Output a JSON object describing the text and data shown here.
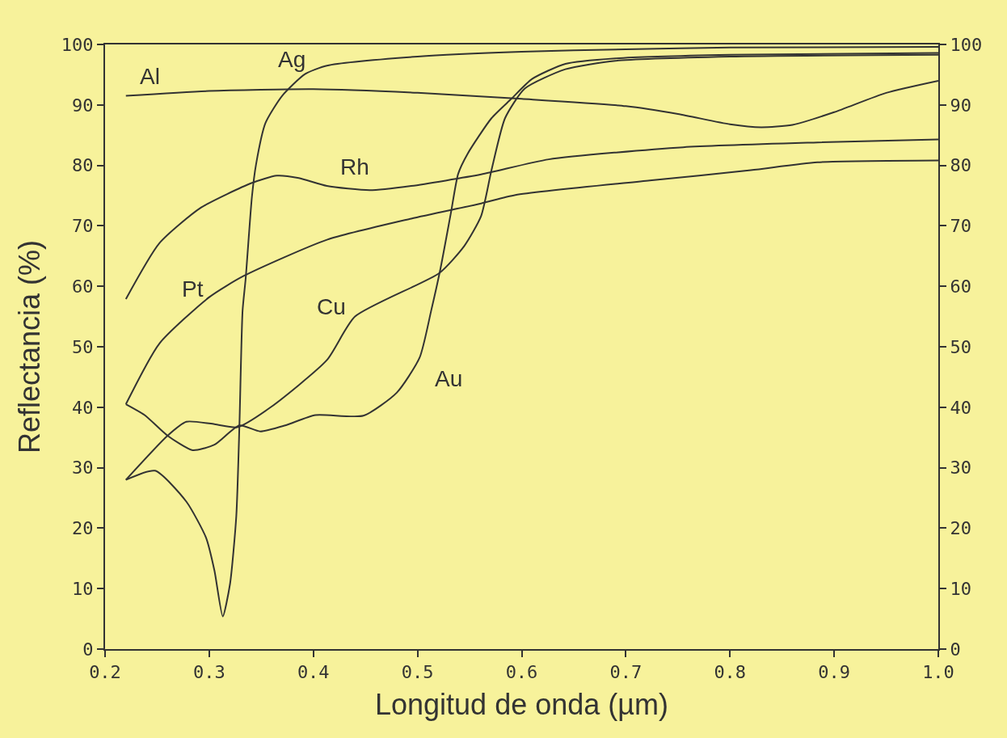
{
  "chart_data": {
    "type": "line",
    "xlabel": "Longitud de onda (µm)",
    "ylabel": "Reflectancia (%)",
    "xlim": [
      0.2,
      1.0
    ],
    "xticks": [
      0.2,
      0.3,
      0.4,
      0.5,
      0.6,
      0.7,
      0.8,
      0.9,
      {
        "value": 1.0,
        "label": "1.0"
      }
    ],
    "ylim": [
      0,
      100
    ],
    "yticks": [
      0,
      10,
      20,
      30,
      40,
      50,
      60,
      70,
      80,
      90,
      100
    ],
    "y2lim": [
      0,
      100
    ],
    "y2ticks": [
      0,
      10,
      20,
      30,
      40,
      50,
      60,
      70,
      80,
      90,
      100
    ],
    "grid": false,
    "marker": "none",
    "line_style": "solid",
    "series": [
      {
        "name": "Al",
        "color": "#333333",
        "x": [
          0.22,
          0.3,
          0.4,
          0.5,
          0.6,
          0.7,
          0.75,
          0.8,
          0.83,
          0.86,
          0.9,
          0.95,
          1.0
        ],
        "values": [
          91.5,
          92.3,
          92.6,
          92,
          91,
          89.8,
          88.5,
          86.8,
          86.3,
          86.7,
          88.8,
          92,
          94
        ]
      },
      {
        "name": "Ag",
        "color": "#333333",
        "x": [
          0.22,
          0.248,
          0.278,
          0.297,
          0.305,
          0.313,
          0.32,
          0.326,
          0.329,
          0.332,
          0.335,
          0.341,
          0.345,
          0.354,
          0.37,
          0.392,
          0.413,
          0.5,
          0.6,
          0.7,
          0.8,
          1.0
        ],
        "values": [
          28,
          29.5,
          24.4,
          18.4,
          13,
          5.4,
          10.8,
          22,
          37,
          55.9,
          61.3,
          74.8,
          80.2,
          87,
          91.5,
          95.1,
          96.5,
          98,
          98.8,
          99.2,
          99.5,
          99.6
        ]
      },
      {
        "name": "Cu",
        "color": "#333333",
        "x": [
          0.22,
          0.26,
          0.278,
          0.305,
          0.327,
          0.359,
          0.413,
          0.44,
          0.521,
          0.545,
          0.561,
          0.571,
          0.584,
          0.603,
          0.642,
          0.69,
          0.8,
          1.0
        ],
        "values": [
          28,
          35.3,
          37.6,
          37.2,
          36.7,
          40,
          47.8,
          55,
          62.2,
          66.7,
          71.6,
          79.2,
          87.8,
          92.7,
          95.9,
          97.3,
          98,
          98.3
        ]
      },
      {
        "name": "Au",
        "color": "#333333",
        "x": [
          0.22,
          0.238,
          0.26,
          0.284,
          0.305,
          0.329,
          0.349,
          0.373,
          0.402,
          0.448,
          0.48,
          0.502,
          0.513,
          0.522,
          0.532,
          0.539,
          0.548,
          0.571,
          0.59,
          0.61,
          0.642,
          0.69,
          0.8,
          1.0
        ],
        "values": [
          40.5,
          38.7,
          35.3,
          32.9,
          33.8,
          37,
          36,
          37,
          38.7,
          38.6,
          42.4,
          48.2,
          55.9,
          62.9,
          72.1,
          78.6,
          81.9,
          87.8,
          91,
          94.3,
          96.8,
          97.7,
          98.3,
          98.6
        ]
      },
      {
        "name": "Rh",
        "color": "#333333",
        "x": [
          0.22,
          0.252,
          0.292,
          0.341,
          0.365,
          0.386,
          0.413,
          0.454,
          0.494,
          0.561,
          0.626,
          0.755,
          0.884,
          1.0
        ],
        "values": [
          57.9,
          67.1,
          73,
          77.1,
          78.3,
          77.9,
          76.6,
          75.9,
          76.6,
          78.5,
          81,
          83,
          83.8,
          84.3
        ]
      },
      {
        "name": "Pt",
        "color": "#333333",
        "x": [
          0.22,
          0.252,
          0.3,
          0.333,
          0.413,
          0.494,
          0.561,
          0.594,
          0.723,
          0.82,
          0.884,
          1.0
        ],
        "values": [
          40.5,
          50.5,
          58.2,
          61.7,
          67.7,
          71.2,
          73.7,
          75.1,
          77.5,
          79.2,
          80.5,
          80.8
        ]
      }
    ]
  }
}
